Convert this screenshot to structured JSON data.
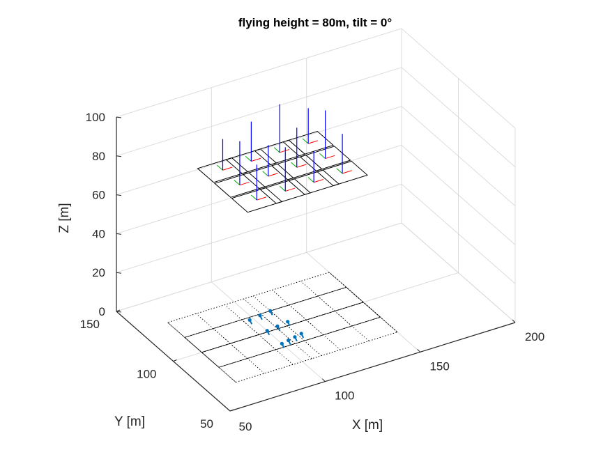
{
  "chart_data": {
    "type": "3d-scatter",
    "title": "flying height = 80m, tilt = 0°",
    "xlabel": "X [m]",
    "ylabel": "Y [m]",
    "zlabel": "Z [m]",
    "xlim": [
      50,
      200
    ],
    "ylim": [
      50,
      150
    ],
    "zlim": [
      0,
      100
    ],
    "x_ticks": [
      "100",
      "150",
      "200"
    ],
    "x_tick_values": [
      100,
      150,
      200
    ],
    "y_ticks": [
      "50",
      "100",
      "150"
    ],
    "y_tick_values": [
      50,
      100,
      150
    ],
    "z_ticks": [
      "0",
      "20",
      "40",
      "60",
      "80",
      "100"
    ],
    "z_tick_values": [
      0,
      20,
      40,
      60,
      80,
      100
    ],
    "x_corner_label": "50",
    "grid": true,
    "flying_height": 80,
    "camera_stations": [
      {
        "x": 85,
        "y": 115,
        "z": 80
      },
      {
        "x": 100,
        "y": 115,
        "z": 80
      },
      {
        "x": 115,
        "y": 115,
        "z": 80
      },
      {
        "x": 130,
        "y": 115,
        "z": 80
      },
      {
        "x": 85,
        "y": 100,
        "z": 80
      },
      {
        "x": 100,
        "y": 100,
        "z": 80
      },
      {
        "x": 115,
        "y": 100,
        "z": 80
      },
      {
        "x": 130,
        "y": 100,
        "z": 80
      },
      {
        "x": 85,
        "y": 85,
        "z": 80
      },
      {
        "x": 100,
        "y": 85,
        "z": 80
      },
      {
        "x": 115,
        "y": 85,
        "z": 80
      },
      {
        "x": 130,
        "y": 85,
        "z": 80
      }
    ],
    "ground_points": [
      {
        "x": 98,
        "y": 113,
        "z": 0
      },
      {
        "x": 104,
        "y": 114,
        "z": 0
      },
      {
        "x": 110,
        "y": 115,
        "z": 0
      },
      {
        "x": 100,
        "y": 101,
        "z": 0
      },
      {
        "x": 106,
        "y": 102,
        "z": 0
      },
      {
        "x": 112,
        "y": 103,
        "z": 0
      },
      {
        "x": 100,
        "y": 88,
        "z": 0
      },
      {
        "x": 104,
        "y": 89,
        "z": 0
      },
      {
        "x": 108,
        "y": 90,
        "z": 0
      },
      {
        "x": 112,
        "y": 91,
        "z": 0
      }
    ],
    "colors": {
      "axes": "#262626",
      "grid": "#dcdcdc",
      "camera_frame": "#000000",
      "camera_axis": "#0000ff",
      "camera_x_axis": "#ff0000",
      "camera_y_axis": "#00aa00",
      "ground_points": "#0072bd",
      "footprint": "#000000"
    }
  }
}
